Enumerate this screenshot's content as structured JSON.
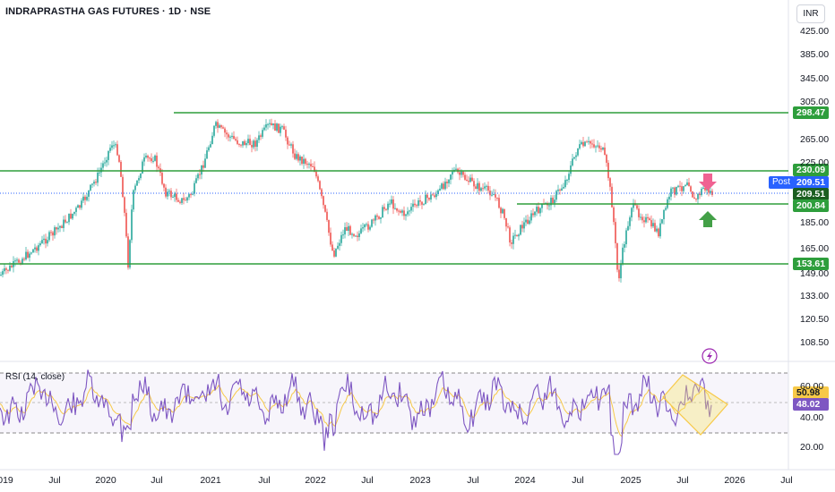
{
  "header": {
    "title": "INDRAPRASTHA GAS FUTURES · 1D · NSE",
    "currency": "INR"
  },
  "price_axis": {
    "ticks": [
      "425.00",
      "385.00",
      "345.00",
      "305.00",
      "265.00",
      "225.00",
      "185.00",
      "165.00",
      "149.00",
      "133.00",
      "120.50",
      "108.50"
    ]
  },
  "rsi_axis": {
    "ticks": [
      "60.00",
      "40.00",
      "20.00"
    ]
  },
  "time_axis": {
    "labels": [
      "019",
      "Jul",
      "2020",
      "Jul",
      "2021",
      "Jul",
      "2022",
      "Jul",
      "2023",
      "Jul",
      "2024",
      "Jul",
      "2025",
      "Jul",
      "2026",
      "Jul"
    ]
  },
  "levels": [
    {
      "label": "298.47",
      "price": 298.47
    },
    {
      "label": "230.09",
      "price": 230.09
    },
    {
      "label": "200.84",
      "price": 200.84
    },
    {
      "label": "153.61",
      "price": 153.61
    }
  ],
  "current": {
    "post_label": "Post",
    "post_price": "209.51",
    "last_price": "209.51"
  },
  "rsi": {
    "label": "RSI (14, close)",
    "value_1": "50.98",
    "value_2": "48.02"
  },
  "colors": {
    "green": "#089981",
    "level_line": "#2e9e3c",
    "candle_up": "#26a69a",
    "candle_down": "#ef5350",
    "rsi_line": "#7e57c2",
    "rsi_ma": "#f7c948",
    "post_blue": "#2962ff",
    "arrow_down": "#f06292",
    "arrow_up": "#43a047"
  },
  "icons": [
    "lightning-icon",
    "arrow-down-icon",
    "arrow-up-icon"
  ]
}
